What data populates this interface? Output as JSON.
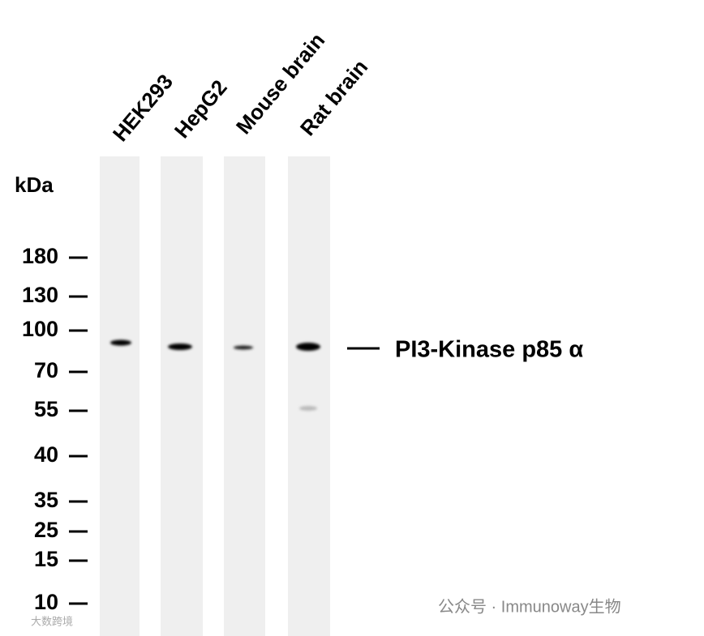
{
  "lanes": [
    "HEK293",
    "HepG2",
    "Mouse brain",
    "Rat brain"
  ],
  "unit_label": "kDa",
  "markers": [
    "180",
    "130",
    "100",
    "70",
    "55",
    "40",
    "35",
    "25",
    "15",
    "10"
  ],
  "band_label": "PI3-Kinase p85 α",
  "watermark": "公众号 · Immunoway生物",
  "corner_mark": "大数跨境"
}
